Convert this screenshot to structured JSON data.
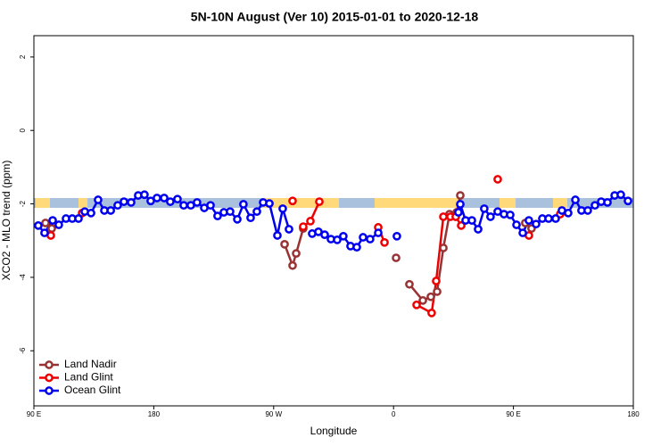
{
  "chart_data": {
    "type": "line",
    "title": "5N-10N August (Ver 10)   2015-01-01 to 2020-12-18",
    "x_label": "Longitude",
    "y_label": "XCO2 - MLO trend (ppm)",
    "xlim": [
      90,
      540
    ],
    "ylim": [
      -7.5,
      2.58
    ],
    "xticks": [
      {
        "value": 90,
        "label": "90 E"
      },
      {
        "value": 180,
        "label": "180"
      },
      {
        "value": 270,
        "label": "90 W"
      },
      {
        "value": 360,
        "label": "0"
      },
      {
        "value": 450,
        "label": "90 E"
      },
      {
        "value": 540,
        "label": "180"
      }
    ],
    "yticks": [
      2,
      0,
      -2,
      -4,
      -6
    ],
    "legend": "bottom-left",
    "series": [
      {
        "name": "Land Nadir",
        "color": "#993333",
        "x": [
          98.7,
          103.4,
          null,
          278.2,
          284.2,
          286.9,
          292.2,
          null,
          361.9,
          null,
          371.9,
          382.0,
          388.0,
          392.7,
          397.4,
          402.0,
          407.4,
          410.1,
          null,
          458.9,
          463.6
        ],
        "values": [
          -2.52,
          -2.67,
          null,
          -3.1,
          -3.68,
          -3.35,
          -2.67,
          null,
          -3.47,
          null,
          -4.19,
          -4.63,
          -4.53,
          -4.39,
          -3.2,
          -2.28,
          -2.23,
          -1.77,
          null,
          -2.52,
          -2.67
        ]
      },
      {
        "name": "Land Glint",
        "color": "#ee0000",
        "x": [
          102.7,
          null,
          126.2,
          null,
          284.2,
          null,
          292.2,
          297.6,
          304.3,
          null,
          348.5,
          353.2,
          null,
          377.3,
          388.6,
          392.0,
          397.4,
          402.7,
          406.7,
          410.8,
          null,
          438.2,
          null,
          461.6,
          null,
          485.1
        ],
        "values": [
          -2.86,
          null,
          -2.25,
          null,
          -1.92,
          null,
          -2.62,
          -2.47,
          -1.94,
          null,
          -2.64,
          -3.05,
          null,
          -4.75,
          -4.97,
          -4.1,
          -2.35,
          -2.35,
          -2.35,
          -2.59,
          null,
          -1.33,
          null,
          -2.86,
          null,
          -2.28
        ]
      },
      {
        "name": "Ocean Glint",
        "color": "#0000ee",
        "x": [
          93.3,
          98.0,
          104.1,
          108.7,
          114.1,
          118.8,
          123.5,
          128.2,
          132.9,
          138.2,
          142.9,
          147.7,
          152.9,
          157.6,
          163.0,
          168.3,
          173.0,
          177.7,
          182.4,
          187.8,
          192.4,
          197.8,
          202.5,
          207.8,
          212.5,
          217.9,
          222.6,
          227.9,
          232.6,
          237.3,
          242.7,
          247.3,
          252.7,
          257.4,
          262.1,
          266.8,
          272.8,
          276.8,
          281.5,
          null,
          298.9,
          303.6,
          308.3,
          313.0,
          317.7,
          322.3,
          327.7,
          332.4,
          337.1,
          342.4,
          348.5,
          null,
          362.5,
          null,
          408.7,
          410.1,
          414.1,
          418.8,
          423.5,
          428.1,
          432.8,
          438.2,
          442.9,
          447.6,
          452.3,
          457.0,
          461.6,
          467.0,
          471.7,
          476.4,
          481.7,
          486.4,
          491.1,
          496.5,
          501.1,
          505.8,
          511.2,
          515.9,
          520.6,
          526.0,
          530.6,
          536.0
        ],
        "values": [
          -2.59,
          -2.79,
          -2.45,
          -2.57,
          -2.4,
          -2.4,
          -2.4,
          -2.21,
          -2.25,
          -1.89,
          -2.18,
          -2.18,
          -2.04,
          -1.94,
          -1.96,
          -1.77,
          -1.75,
          -1.92,
          -1.84,
          -1.84,
          -1.94,
          -1.87,
          -2.04,
          -2.04,
          -1.96,
          -2.11,
          -2.04,
          -2.33,
          -2.23,
          -2.21,
          -2.42,
          -2.01,
          -2.38,
          -2.21,
          -1.96,
          -1.99,
          -2.86,
          -2.13,
          -2.69,
          null,
          -2.81,
          -2.76,
          -2.84,
          -2.96,
          -2.98,
          -2.88,
          -3.15,
          -3.18,
          -2.91,
          -2.96,
          -2.79,
          null,
          -2.88,
          null,
          -2.23,
          -2.01,
          -2.45,
          -2.45,
          -2.69,
          -2.13,
          -2.35,
          -2.21,
          -2.28,
          -2.3,
          -2.57,
          -2.79,
          -2.45,
          -2.55,
          -2.4,
          -2.4,
          -2.4,
          -2.18,
          -2.25,
          -1.89,
          -2.18,
          -2.18,
          -2.04,
          -1.94,
          -1.96,
          -1.77,
          -1.75,
          -1.92
        ]
      }
    ]
  }
}
